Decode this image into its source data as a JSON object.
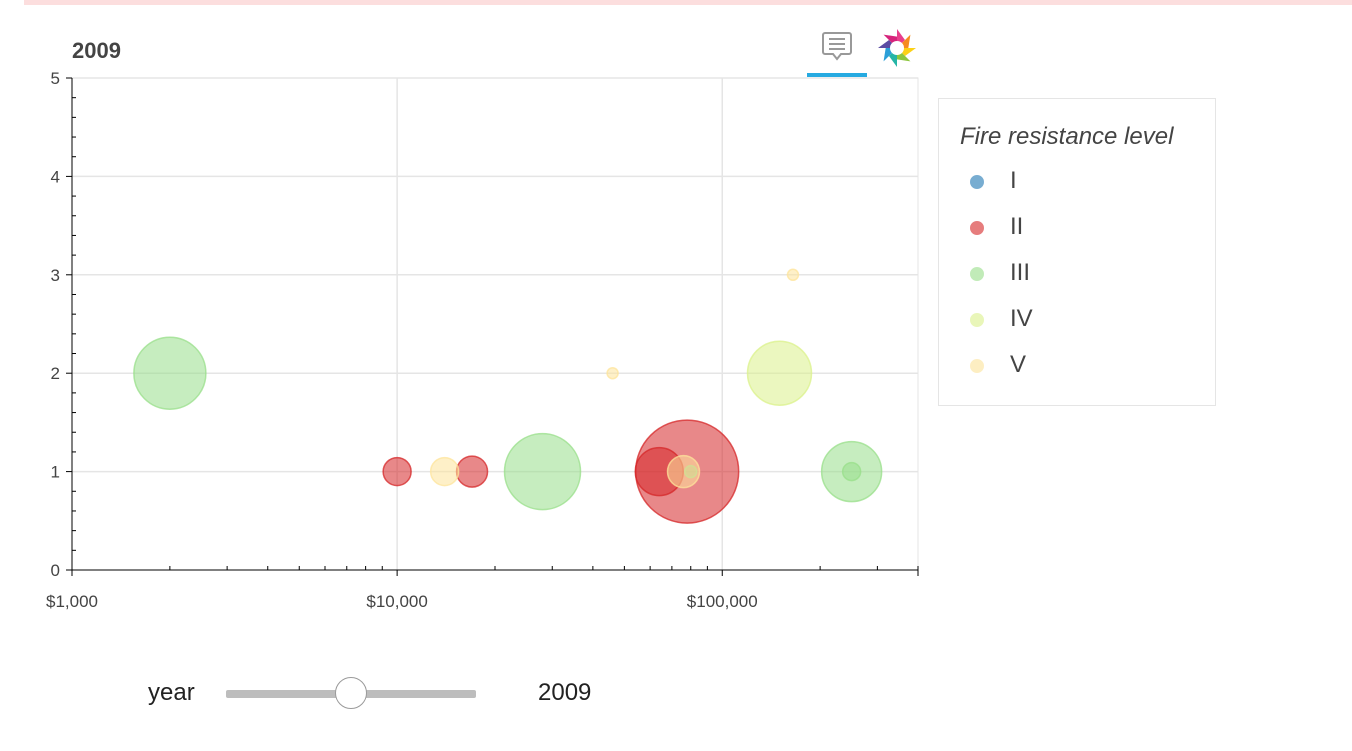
{
  "toolbar": {
    "hover_icon": "comment-icon",
    "logo_icon": "bokeh-logo-icon",
    "accent_color": "#26aae1"
  },
  "legend": {
    "title": "Fire resistance level",
    "items": [
      {
        "label": "I",
        "color": "#1f77b4"
      },
      {
        "label": "II",
        "color": "#d62728"
      },
      {
        "label": "III",
        "color": "#98df8a"
      },
      {
        "label": "IV",
        "color": "#dbf18b"
      },
      {
        "label": "V",
        "color": "#fde49b"
      }
    ]
  },
  "widget": {
    "label": "year",
    "value": "2009",
    "slider_fraction": 0.5
  },
  "chart_data": {
    "type": "scatter",
    "title": "2009",
    "xlabel": "",
    "ylabel": "",
    "x_scale": "log",
    "xlim": [
      1000,
      400000
    ],
    "ylim": [
      0,
      5
    ],
    "x_ticks": [
      1000,
      10000,
      100000
    ],
    "x_tick_labels": [
      "$1,000",
      "$10,000",
      "$100,000"
    ],
    "y_ticks": [
      0,
      1,
      2,
      3,
      4,
      5
    ],
    "y_tick_labels": [
      "0",
      "1",
      "2",
      "3",
      "4",
      "5"
    ],
    "grid": true,
    "legend_position": "right",
    "series": [
      {
        "name": "II",
        "points": [
          {
            "x": 10000,
            "y": 1,
            "size": 28
          },
          {
            "x": 17000,
            "y": 1,
            "size": 31
          },
          {
            "x": 64000,
            "y": 1,
            "size": 48
          },
          {
            "x": 78000,
            "y": 1,
            "size": 103
          }
        ]
      },
      {
        "name": "III",
        "points": [
          {
            "x": 2000,
            "y": 2,
            "size": 72
          },
          {
            "x": 28000,
            "y": 1,
            "size": 76
          },
          {
            "x": 250000,
            "y": 1,
            "size": 60
          },
          {
            "x": 250000,
            "y": 1,
            "size": 18
          },
          {
            "x": 80000,
            "y": 1,
            "size": 12
          }
        ]
      },
      {
        "name": "IV",
        "points": [
          {
            "x": 150000,
            "y": 2,
            "size": 64
          }
        ]
      },
      {
        "name": "V",
        "points": [
          {
            "x": 14000,
            "y": 1,
            "size": 28
          },
          {
            "x": 46000,
            "y": 2,
            "size": 11
          },
          {
            "x": 165000,
            "y": 3,
            "size": 11
          },
          {
            "x": 76000,
            "y": 1,
            "size": 32
          }
        ]
      }
    ]
  }
}
